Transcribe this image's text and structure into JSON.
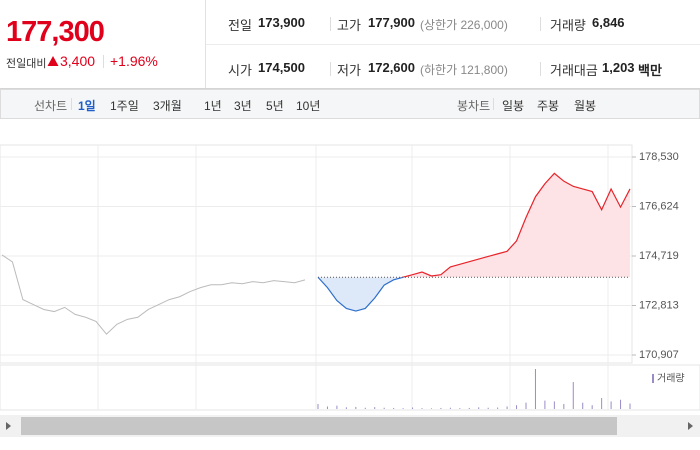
{
  "price": {
    "current": "177,300",
    "change_label": "전일대비",
    "change": "3,400",
    "rate": "+1.96%"
  },
  "info": [
    {
      "label": "전일",
      "value": "173,900"
    },
    {
      "label": "고가",
      "value": "177,900",
      "sub": "(상한가 226,000)"
    },
    {
      "label": "거래량",
      "value": "6,846"
    },
    {
      "label": "시가",
      "value": "174,500"
    },
    {
      "label": "저가",
      "value": "172,600",
      "sub": "(하한가 121,800)"
    },
    {
      "label": "거래대금",
      "value": "1,203",
      "unit": "백만"
    }
  ],
  "tabs": {
    "line_label": "선차트",
    "line": [
      "1일",
      "1주일",
      "3개월",
      "1년",
      "3년",
      "5년",
      "10년"
    ],
    "active": 0,
    "candle_label": "봉차트",
    "candle": [
      "일봉",
      "주봉",
      "월봉"
    ]
  },
  "chart": {
    "type": "line",
    "ylim": [
      170907,
      178530
    ],
    "yticks": [
      {
        "value": 178530,
        "label": "178,530"
      },
      {
        "value": 176624,
        "label": "176,624"
      },
      {
        "value": 174719,
        "label": "174,719"
      },
      {
        "value": 172813,
        "label": "172,813"
      },
      {
        "value": 170907,
        "label": "170,907"
      }
    ],
    "baseline": 173900,
    "grid": true,
    "series": [
      {
        "color": "#bbbbbb",
        "values": [
          174760,
          174490,
          173040,
          172850,
          172660,
          172580,
          172740,
          172470,
          172360,
          172200,
          171710,
          172090,
          172280,
          172360,
          172660,
          172850,
          173040,
          173150,
          173350,
          173500,
          173610,
          173610,
          173690,
          173650,
          173730,
          173690,
          173770,
          173730,
          173690,
          173800
        ]
      },
      {
        "up_color": "#e8232a",
        "down_color": "#2f6fcb",
        "up_fill": "#fde3e5",
        "down_fill": "#dde9f8",
        "values": [
          173900,
          173500,
          173000,
          172700,
          172600,
          172700,
          173100,
          173600,
          173800,
          173900,
          174000,
          174100,
          173950,
          174000,
          174300,
          174400,
          174500,
          174600,
          174700,
          174800,
          174900,
          175300,
          176200,
          177000,
          177500,
          177900,
          177600,
          177400,
          177300,
          177200,
          176500,
          177300,
          176600,
          177300
        ]
      }
    ],
    "volume": {
      "legend": "거래량",
      "color": "#9a8cc8",
      "values": [
        120,
        60,
        80,
        40,
        50,
        30,
        45,
        30,
        25,
        20,
        35,
        20,
        15,
        25,
        30,
        20,
        25,
        40,
        30,
        35,
        60,
        90,
        150,
        950,
        200,
        180,
        120,
        640,
        150,
        90,
        260,
        180,
        220,
        130
      ]
    }
  }
}
